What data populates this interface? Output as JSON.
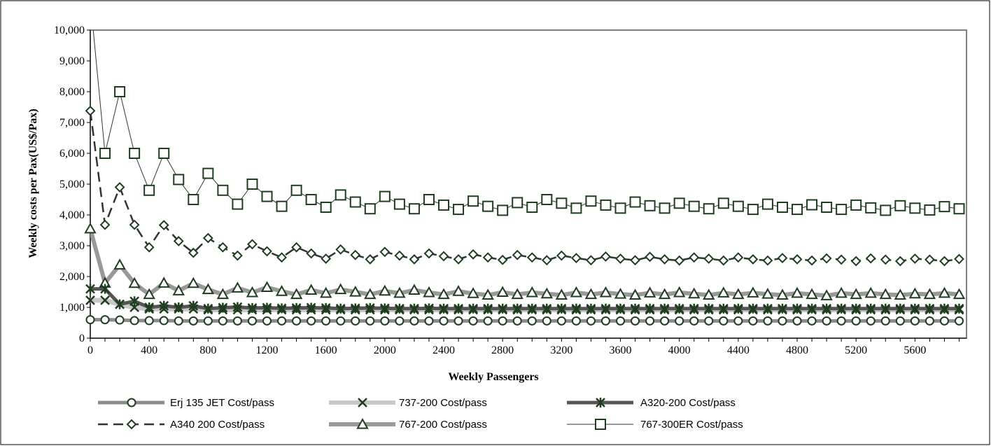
{
  "chart_data": {
    "type": "line",
    "title": "",
    "xlabel": "Weekly Passengers",
    "ylabel": "Weekly costs per Pax(US$/Pax)",
    "xlim": [
      0,
      5950
    ],
    "ylim": [
      0,
      10000
    ],
    "x_ticks": [
      0,
      400,
      800,
      1200,
      1600,
      2000,
      2400,
      2800,
      3200,
      3600,
      4000,
      4400,
      4800,
      5200,
      5600
    ],
    "x_tick_labels": [
      "0",
      "400",
      "800",
      "1200",
      "1600",
      "2000",
      "2400",
      "2800",
      "3200",
      "3600",
      "4000",
      "4400",
      "4800",
      "5200",
      "5600"
    ],
    "y_ticks": [
      0,
      1000,
      2000,
      3000,
      4000,
      5000,
      6000,
      7000,
      8000,
      9000,
      10000
    ],
    "y_tick_labels": [
      "0",
      "1,000",
      "2,000",
      "3,000",
      "4,000",
      "5,000",
      "6,000",
      "7,000",
      "8,000",
      "9,000",
      "10,000"
    ],
    "grid": false,
    "legend_position": "bottom",
    "x": [
      0,
      100,
      200,
      300,
      400,
      500,
      600,
      700,
      800,
      900,
      1000,
      1100,
      1200,
      1300,
      1400,
      1500,
      1600,
      1700,
      1800,
      1900,
      2000,
      2100,
      2200,
      2300,
      2400,
      2500,
      2600,
      2700,
      2800,
      2900,
      3000,
      3100,
      3200,
      3300,
      3400,
      3500,
      3600,
      3700,
      3800,
      3900,
      4000,
      4100,
      4200,
      4300,
      4400,
      4500,
      4600,
      4700,
      4800,
      4900,
      5000,
      5100,
      5200,
      5300,
      5400,
      5500,
      5600,
      5700,
      5800,
      5900
    ],
    "series": [
      {
        "name": "Erj 135 JET Cost/pass",
        "color": "#8c8c8c",
        "marker": "circle",
        "values": [
          600,
          600,
          590,
          570,
          570,
          570,
          560,
          560,
          560,
          560,
          560,
          560,
          560,
          560,
          560,
          560,
          560,
          560,
          560,
          560,
          560,
          560,
          560,
          560,
          560,
          560,
          560,
          560,
          560,
          560,
          560,
          560,
          560,
          560,
          560,
          560,
          560,
          560,
          560,
          560,
          560,
          560,
          560,
          560,
          560,
          560,
          560,
          560,
          560,
          560,
          560,
          560,
          560,
          560,
          560,
          560,
          560,
          560,
          560,
          560
        ]
      },
      {
        "name": "737-200 Cost/pass",
        "color": "#c8c8c8",
        "marker": "x",
        "values": [
          1230,
          1230,
          1100,
          1000,
          950,
          950,
          950,
          950,
          920,
          920,
          920,
          920,
          920,
          920,
          920,
          920,
          920,
          920,
          920,
          920,
          920,
          920,
          920,
          920,
          920,
          920,
          920,
          920,
          920,
          920,
          920,
          920,
          920,
          920,
          920,
          920,
          920,
          920,
          920,
          920,
          920,
          920,
          920,
          920,
          920,
          920,
          920,
          920,
          920,
          920,
          920,
          920,
          920,
          920,
          920,
          920,
          920,
          920,
          920,
          920
        ]
      },
      {
        "name": "A320-200 Cost/pass",
        "color": "#555555",
        "marker": "star",
        "values": [
          1600,
          1600,
          1100,
          1200,
          1000,
          1050,
          1000,
          1050,
          960,
          990,
          1010,
          980,
          990,
          970,
          980,
          990,
          980,
          960,
          970,
          980,
          970,
          960,
          960,
          970,
          960,
          960,
          960,
          960,
          960,
          960,
          960,
          960,
          960,
          960,
          960,
          960,
          960,
          960,
          960,
          960,
          960,
          960,
          960,
          960,
          960,
          960,
          960,
          960,
          960,
          960,
          960,
          960,
          960,
          960,
          960,
          960,
          960,
          960,
          960,
          960
        ]
      },
      {
        "name": "A340 200 Cost/pass",
        "color": "#333333",
        "marker": "diamond",
        "values": [
          7380,
          3680,
          4900,
          3680,
          2950,
          3670,
          3150,
          2770,
          3250,
          2950,
          2680,
          3050,
          2820,
          2620,
          2950,
          2750,
          2580,
          2880,
          2700,
          2560,
          2800,
          2680,
          2560,
          2750,
          2660,
          2560,
          2720,
          2620,
          2540,
          2700,
          2620,
          2530,
          2680,
          2600,
          2530,
          2650,
          2580,
          2530,
          2640,
          2560,
          2520,
          2620,
          2580,
          2520,
          2620,
          2560,
          2520,
          2600,
          2560,
          2520,
          2590,
          2550,
          2500,
          2590,
          2550,
          2500,
          2580,
          2550,
          2500,
          2570
        ]
      },
      {
        "name": "767-200 Cost/pass",
        "color": "#999999",
        "marker": "triangle",
        "values": [
          3550,
          1790,
          2380,
          1780,
          1420,
          1790,
          1540,
          1780,
          1580,
          1420,
          1630,
          1480,
          1650,
          1520,
          1420,
          1560,
          1460,
          1580,
          1500,
          1420,
          1530,
          1460,
          1560,
          1480,
          1420,
          1520,
          1450,
          1400,
          1490,
          1420,
          1480,
          1440,
          1400,
          1480,
          1420,
          1480,
          1430,
          1400,
          1470,
          1420,
          1480,
          1440,
          1400,
          1470,
          1420,
          1470,
          1430,
          1400,
          1460,
          1420,
          1380,
          1460,
          1420,
          1460,
          1420,
          1400,
          1440,
          1420,
          1460,
          1420
        ]
      },
      {
        "name": "767-300ER Cost/pass",
        "color": "#333333",
        "marker": "square",
        "values": [
          11000,
          6000,
          8000,
          6000,
          4800,
          6000,
          5150,
          4500,
          5350,
          4800,
          4350,
          5000,
          4600,
          4280,
          4800,
          4500,
          4250,
          4650,
          4420,
          4200,
          4600,
          4350,
          4200,
          4500,
          4320,
          4180,
          4450,
          4280,
          4150,
          4400,
          4250,
          4500,
          4380,
          4220,
          4450,
          4320,
          4220,
          4420,
          4300,
          4220,
          4380,
          4280,
          4200,
          4380,
          4280,
          4180,
          4350,
          4250,
          4180,
          4330,
          4250,
          4180,
          4320,
          4230,
          4150,
          4300,
          4220,
          4160,
          4270,
          4200
        ]
      }
    ]
  },
  "legend": {
    "items": [
      {
        "label": "Erj 135 JET Cost/pass"
      },
      {
        "label": "737-200 Cost/pass"
      },
      {
        "label": "A320-200 Cost/pass"
      },
      {
        "label": "A340 200 Cost/pass"
      },
      {
        "label": "767-200 Cost/pass"
      },
      {
        "label": "767-300ER Cost/pass"
      }
    ]
  },
  "colors": {
    "marker_outline": "#1f3d1f",
    "marker_fill": "#ffffff",
    "axis": "#000000",
    "plot_border": "#808080",
    "frame": "#000000"
  }
}
